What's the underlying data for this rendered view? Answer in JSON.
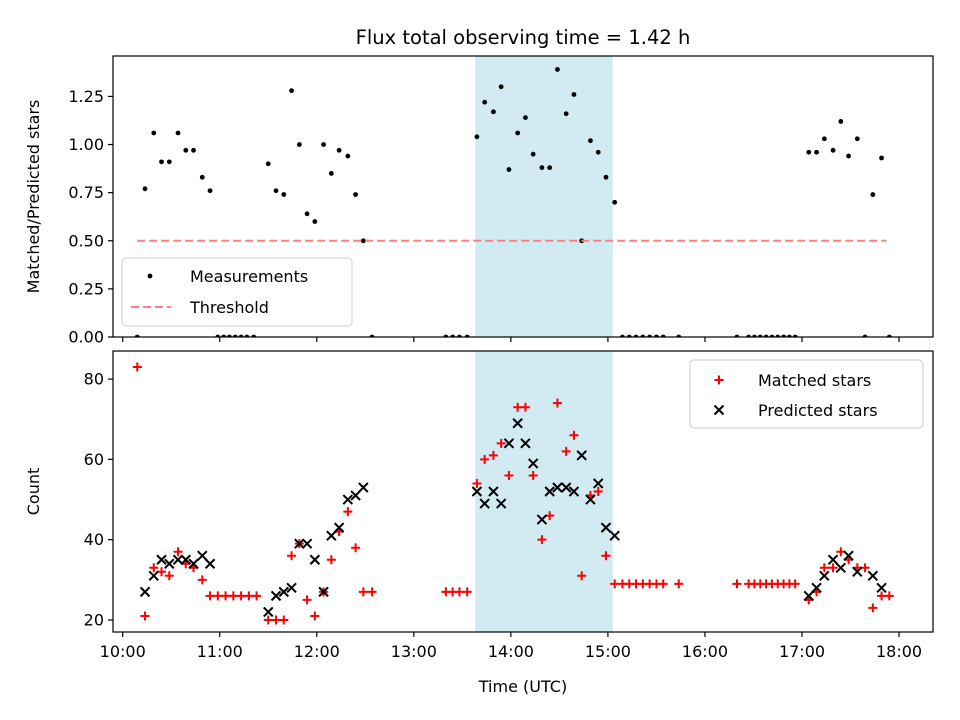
{
  "chart_data": [
    {
      "type": "scatter",
      "title": "Flux total observing time = 1.42 h",
      "xlabel": "",
      "ylabel": "Matched/Predicted stars",
      "xlim": [
        9.9,
        18.35
      ],
      "ylim": [
        0,
        1.46
      ],
      "yticks": [
        0,
        0.25,
        0.5,
        0.75,
        1.0,
        1.25
      ],
      "ytick_labels": [
        "0.00",
        "0.25",
        "0.50",
        "0.75",
        "1.00",
        "1.25"
      ],
      "shaded_region": {
        "x_start": 13.633,
        "x_end": 15.05,
        "color": "#add8e6"
      },
      "legend": {
        "position": "lower-left",
        "entries": [
          "Measurements",
          "Threshold"
        ]
      },
      "series": [
        {
          "name": "Measurements",
          "marker": "dot",
          "color": "#000000",
          "points": [
            [
              10.15,
              0
            ],
            [
              10.23,
              0.77
            ],
            [
              10.32,
              1.06
            ],
            [
              10.4,
              0.91
            ],
            [
              10.48,
              0.91
            ],
            [
              10.57,
              1.06
            ],
            [
              10.65,
              0.97
            ],
            [
              10.73,
              0.97
            ],
            [
              10.82,
              0.83
            ],
            [
              10.9,
              0.76
            ],
            [
              10.98,
              0
            ],
            [
              11.04,
              0
            ],
            [
              11.1,
              0
            ],
            [
              11.16,
              0
            ],
            [
              11.22,
              0
            ],
            [
              11.28,
              0
            ],
            [
              11.35,
              0
            ],
            [
              11.5,
              0.9
            ],
            [
              11.58,
              0.76
            ],
            [
              11.66,
              0.74
            ],
            [
              11.74,
              1.28
            ],
            [
              11.82,
              1.0
            ],
            [
              11.9,
              0.64
            ],
            [
              11.98,
              0.6
            ],
            [
              12.07,
              1.0
            ],
            [
              12.15,
              0.85
            ],
            [
              12.23,
              0.97
            ],
            [
              12.32,
              0.94
            ],
            [
              12.4,
              0.74
            ],
            [
              12.48,
              0.5
            ],
            [
              12.57,
              0
            ],
            [
              13.33,
              0
            ],
            [
              13.4,
              0
            ],
            [
              13.47,
              0
            ],
            [
              13.55,
              0
            ],
            [
              13.65,
              1.04
            ],
            [
              13.73,
              1.22
            ],
            [
              13.82,
              1.17
            ],
            [
              13.9,
              1.3
            ],
            [
              13.98,
              0.87
            ],
            [
              14.07,
              1.06
            ],
            [
              14.15,
              1.14
            ],
            [
              14.23,
              0.95
            ],
            [
              14.32,
              0.88
            ],
            [
              14.4,
              0.88
            ],
            [
              14.48,
              1.39
            ],
            [
              14.57,
              1.16
            ],
            [
              14.65,
              1.26
            ],
            [
              14.73,
              0.5
            ],
            [
              14.82,
              1.02
            ],
            [
              14.9,
              0.96
            ],
            [
              14.98,
              0.83
            ],
            [
              15.07,
              0.7
            ],
            [
              15.15,
              0
            ],
            [
              15.22,
              0
            ],
            [
              15.29,
              0
            ],
            [
              15.36,
              0
            ],
            [
              15.43,
              0
            ],
            [
              15.5,
              0
            ],
            [
              15.57,
              0
            ],
            [
              15.73,
              0
            ],
            [
              16.33,
              0
            ],
            [
              16.45,
              0
            ],
            [
              16.51,
              0
            ],
            [
              16.57,
              0
            ],
            [
              16.63,
              0
            ],
            [
              16.69,
              0
            ],
            [
              16.75,
              0
            ],
            [
              16.81,
              0
            ],
            [
              16.87,
              0
            ],
            [
              16.93,
              0
            ],
            [
              17.07,
              0.96
            ],
            [
              17.15,
              0.96
            ],
            [
              17.23,
              1.03
            ],
            [
              17.32,
              0.97
            ],
            [
              17.4,
              1.12
            ],
            [
              17.48,
              0.94
            ],
            [
              17.57,
              1.03
            ],
            [
              17.65,
              0
            ],
            [
              17.73,
              0.74
            ],
            [
              17.82,
              0.93
            ],
            [
              17.9,
              0
            ]
          ]
        },
        {
          "name": "Threshold",
          "marker": "dashed-line",
          "color": "#ff7f7f",
          "points": [
            [
              10.15,
              0.5
            ],
            [
              17.87,
              0.5
            ]
          ]
        }
      ]
    },
    {
      "type": "scatter",
      "title": "",
      "xlabel": "Time (UTC)",
      "ylabel": "Count",
      "xlim": [
        9.9,
        18.35
      ],
      "ylim": [
        17,
        87
      ],
      "yticks": [
        20,
        40,
        60,
        80
      ],
      "ytick_labels": [
        "20",
        "40",
        "60",
        "80"
      ],
      "xticks": [
        10,
        11,
        12,
        13,
        14,
        15,
        16,
        17,
        18
      ],
      "xtick_labels": [
        "10:00",
        "11:00",
        "12:00",
        "13:00",
        "14:00",
        "15:00",
        "16:00",
        "17:00",
        "18:00"
      ],
      "shaded_region": {
        "x_start": 13.633,
        "x_end": 15.05,
        "color": "#add8e6"
      },
      "legend": {
        "position": "top-right",
        "entries": [
          "Matched stars",
          "Predicted stars"
        ]
      },
      "series": [
        {
          "name": "Matched stars",
          "marker": "plus",
          "color": "#ff0000",
          "points": [
            [
              10.15,
              83
            ],
            [
              10.23,
              21
            ],
            [
              10.32,
              33
            ],
            [
              10.4,
              32
            ],
            [
              10.48,
              31
            ],
            [
              10.57,
              37
            ],
            [
              10.65,
              34
            ],
            [
              10.73,
              33
            ],
            [
              10.82,
              30
            ],
            [
              10.9,
              26
            ],
            [
              10.98,
              26
            ],
            [
              11.06,
              26
            ],
            [
              11.14,
              26
            ],
            [
              11.22,
              26
            ],
            [
              11.3,
              26
            ],
            [
              11.38,
              26
            ],
            [
              11.5,
              20
            ],
            [
              11.58,
              20
            ],
            [
              11.66,
              20
            ],
            [
              11.74,
              36
            ],
            [
              11.82,
              39
            ],
            [
              11.9,
              25
            ],
            [
              11.98,
              21
            ],
            [
              12.07,
              27
            ],
            [
              12.15,
              35
            ],
            [
              12.23,
              42
            ],
            [
              12.32,
              47
            ],
            [
              12.4,
              38
            ],
            [
              12.48,
              27
            ],
            [
              12.57,
              27
            ],
            [
              13.33,
              27
            ],
            [
              13.4,
              27
            ],
            [
              13.47,
              27
            ],
            [
              13.55,
              27
            ],
            [
              13.65,
              54
            ],
            [
              13.73,
              60
            ],
            [
              13.82,
              61
            ],
            [
              13.9,
              64
            ],
            [
              13.98,
              56
            ],
            [
              14.07,
              73
            ],
            [
              14.15,
              73
            ],
            [
              14.23,
              56
            ],
            [
              14.32,
              40
            ],
            [
              14.4,
              46
            ],
            [
              14.48,
              74
            ],
            [
              14.57,
              62
            ],
            [
              14.65,
              66
            ],
            [
              14.73,
              31
            ],
            [
              14.82,
              51
            ],
            [
              14.9,
              52
            ],
            [
              14.98,
              36
            ],
            [
              15.07,
              29
            ],
            [
              15.15,
              29
            ],
            [
              15.22,
              29
            ],
            [
              15.29,
              29
            ],
            [
              15.36,
              29
            ],
            [
              15.43,
              29
            ],
            [
              15.5,
              29
            ],
            [
              15.57,
              29
            ],
            [
              15.73,
              29
            ],
            [
              16.33,
              29
            ],
            [
              16.45,
              29
            ],
            [
              16.51,
              29
            ],
            [
              16.57,
              29
            ],
            [
              16.63,
              29
            ],
            [
              16.69,
              29
            ],
            [
              16.75,
              29
            ],
            [
              16.81,
              29
            ],
            [
              16.87,
              29
            ],
            [
              16.93,
              29
            ],
            [
              17.07,
              25
            ],
            [
              17.15,
              27
            ],
            [
              17.23,
              33
            ],
            [
              17.32,
              33
            ],
            [
              17.4,
              37
            ],
            [
              17.48,
              35
            ],
            [
              17.57,
              33
            ],
            [
              17.65,
              33
            ],
            [
              17.73,
              23
            ],
            [
              17.82,
              26
            ],
            [
              17.9,
              26
            ]
          ]
        },
        {
          "name": "Predicted stars",
          "marker": "x",
          "color": "#000000",
          "points": [
            [
              10.23,
              27
            ],
            [
              10.32,
              31
            ],
            [
              10.4,
              35
            ],
            [
              10.48,
              34
            ],
            [
              10.57,
              35
            ],
            [
              10.65,
              35
            ],
            [
              10.73,
              34
            ],
            [
              10.82,
              36
            ],
            [
              10.9,
              34
            ],
            [
              11.5,
              22
            ],
            [
              11.58,
              26
            ],
            [
              11.66,
              27
            ],
            [
              11.74,
              28
            ],
            [
              11.82,
              39
            ],
            [
              11.9,
              39
            ],
            [
              11.98,
              35
            ],
            [
              12.07,
              27
            ],
            [
              12.15,
              41
            ],
            [
              12.23,
              43
            ],
            [
              12.32,
              50
            ],
            [
              12.4,
              51
            ],
            [
              12.48,
              53
            ],
            [
              13.65,
              52
            ],
            [
              13.73,
              49
            ],
            [
              13.82,
              52
            ],
            [
              13.9,
              49
            ],
            [
              13.98,
              64
            ],
            [
              14.07,
              69
            ],
            [
              14.15,
              64
            ],
            [
              14.23,
              59
            ],
            [
              14.32,
              45
            ],
            [
              14.4,
              52
            ],
            [
              14.48,
              53
            ],
            [
              14.57,
              53
            ],
            [
              14.65,
              52
            ],
            [
              14.73,
              61
            ],
            [
              14.82,
              50
            ],
            [
              14.9,
              54
            ],
            [
              14.98,
              43
            ],
            [
              15.07,
              41
            ],
            [
              17.07,
              26
            ],
            [
              17.15,
              28
            ],
            [
              17.23,
              31
            ],
            [
              17.32,
              35
            ],
            [
              17.4,
              33
            ],
            [
              17.48,
              36
            ],
            [
              17.57,
              32
            ],
            [
              17.73,
              31
            ],
            [
              17.82,
              28
            ]
          ]
        }
      ]
    }
  ]
}
